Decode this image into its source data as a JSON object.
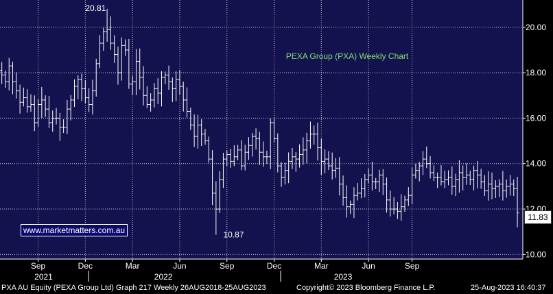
{
  "chart_data": {
    "type": "ohlc-bar",
    "title": "PEXA Group (PXA) Weekly Chart",
    "ylim": [
      9.8,
      21.2
    ],
    "y_ticks": [
      10.0,
      12.0,
      14.0,
      16.0,
      18.0,
      20.0
    ],
    "y_tick_labels": [
      "10.00",
      "12.00",
      "14.00",
      "16.00",
      "18.00",
      "20.00"
    ],
    "x_months": [
      "Sep",
      "Dec",
      "Mar",
      "Jun",
      "Sep",
      "Dec",
      "Mar",
      "Jun",
      "Sep"
    ],
    "x_years": [
      "2021",
      "2022",
      "2023"
    ],
    "grid": true,
    "annotations": {
      "high": "20.81",
      "low": "10.87",
      "last": "11.83"
    },
    "weekly_close": [
      17.9,
      17.6,
      18.3,
      17.6,
      17.2,
      16.7,
      16.9,
      16.5,
      16.6,
      15.8,
      16.6,
      16.8,
      16.4,
      15.8,
      16.0,
      16.0,
      15.6,
      15.6,
      16.4,
      16.8,
      17.4,
      17.7,
      17.3,
      16.9,
      16.6,
      17.2,
      18.4,
      19.3,
      19.8,
      19.9,
      19.3,
      18.8,
      18.0,
      19.2,
      19.0,
      17.5,
      17.6,
      18.5,
      17.8,
      17.0,
      16.6,
      16.8,
      17.3,
      17.1,
      17.8,
      17.9,
      17.6,
      17.3,
      17.7,
      17.4,
      16.8,
      16.3,
      15.7,
      15.2,
      15.7,
      15.3,
      15.0,
      14.2,
      12.7,
      12.0,
      13.3,
      14.2,
      14.4,
      14.1,
      14.3,
      14.6,
      13.9,
      14.5,
      14.8,
      15.2,
      15.1,
      14.5,
      14.3,
      14.3,
      15.8,
      15.1,
      13.9,
      13.4,
      13.7,
      14.1,
      14.3,
      14.2,
      14.4,
      14.6,
      15.0,
      15.3,
      15.3,
      14.7,
      14.1,
      14.2,
      13.9,
      13.7,
      13.8,
      13.1,
      12.5,
      12.1,
      12.2,
      12.6,
      12.7,
      12.9,
      13.3,
      13.5,
      13.2,
      13.2,
      13.5,
      13.1,
      12.4,
      12.0,
      12.0,
      11.9,
      12.1,
      12.4,
      12.6,
      13.5,
      13.7,
      13.9,
      14.2,
      14.0,
      13.6,
      13.4,
      13.4,
      13.2,
      13.3,
      13.4,
      13.0,
      13.3,
      13.6,
      13.4,
      13.5,
      13.3,
      13.7,
      13.5,
      13.2,
      12.8,
      13.1,
      12.9,
      13.0,
      13.1,
      12.8,
      13.0,
      13.1,
      12.9,
      11.83
    ],
    "price_labels": [
      {
        "label": "20.81",
        "value": 20.81
      },
      {
        "label": "10.87",
        "value": 10.87
      }
    ]
  },
  "watermark": "www.marketmatters.com.au",
  "last_price": "11.83",
  "footer": {
    "left": "PXA AU Equity (PEXA Group Ltd) Graph 217  Weekly 26AUG2018-25AUG2023",
    "center": "Copyright© 2023 Bloomberg Finance L.P.",
    "right": "25-Aug-2023 16:40:37"
  },
  "colors": {
    "background": "#14124e",
    "grid": "#ffffff",
    "bars": "#ffffff",
    "title": "#7ee06a"
  }
}
